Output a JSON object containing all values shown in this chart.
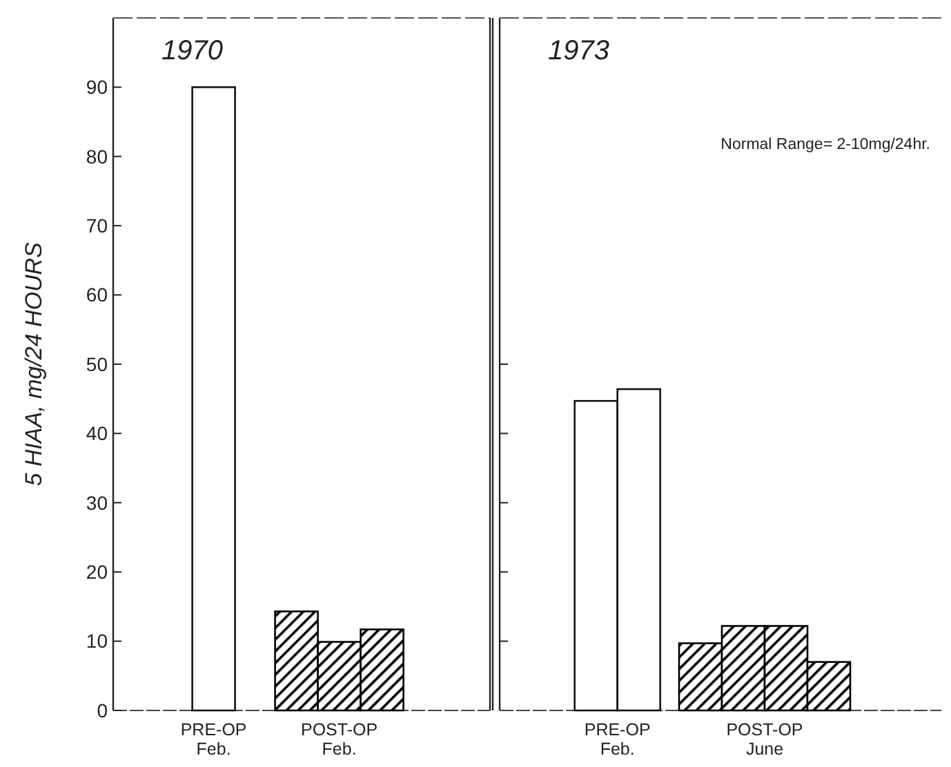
{
  "chart_data": [
    {
      "type": "bar",
      "title": "1970",
      "ylabel": "5 HIAA, mg/24 HOURS",
      "categories": [
        "PRE-OP\nFeb.",
        "POST-OP\nFeb."
      ],
      "series": [
        {
          "colors": [
            "#ffffff",
            "#000000"
          ],
          "values": [
            90,
            14.3
          ]
        },
        {
          "colors": [
            null,
            "#000000"
          ],
          "values": [
            null,
            9.9
          ]
        },
        {
          "colors": [
            null,
            "#000000"
          ],
          "values": [
            null,
            11.7
          ]
        }
      ],
      "ylim": [
        0,
        100
      ],
      "yticks": [
        0,
        10,
        20,
        30,
        40,
        50,
        60,
        70,
        80,
        90
      ],
      "grid": false
    },
    {
      "type": "bar",
      "title": "1973",
      "annotations": [
        "Normal Range= 2-10mg/24hr."
      ],
      "categories": [
        "PRE-OP\nFeb.",
        "POST-OP\nJune"
      ],
      "series": [
        {
          "colors": [
            "#ffffff",
            "#000000"
          ],
          "values": [
            44.7,
            9.7
          ]
        },
        {
          "colors": [
            "#ffffff",
            "#000000"
          ],
          "values": [
            46.4,
            12.2
          ]
        },
        {
          "colors": [
            null,
            "#000000"
          ],
          "values": [
            null,
            12.2
          ]
        },
        {
          "colors": [
            null,
            "#000000"
          ],
          "values": [
            null,
            7.0
          ]
        }
      ],
      "ylim": [
        0,
        100
      ],
      "yticks": [
        {
          "value": 10,
          "label": null
        },
        {
          "value": 20,
          "label": null
        },
        {
          "value": 30,
          "label": null
        },
        {
          "value": 40,
          "label": null
        },
        {
          "value": 50,
          "label": null
        }
      ],
      "tick_labels": "x",
      "grid": false
    }
  ]
}
